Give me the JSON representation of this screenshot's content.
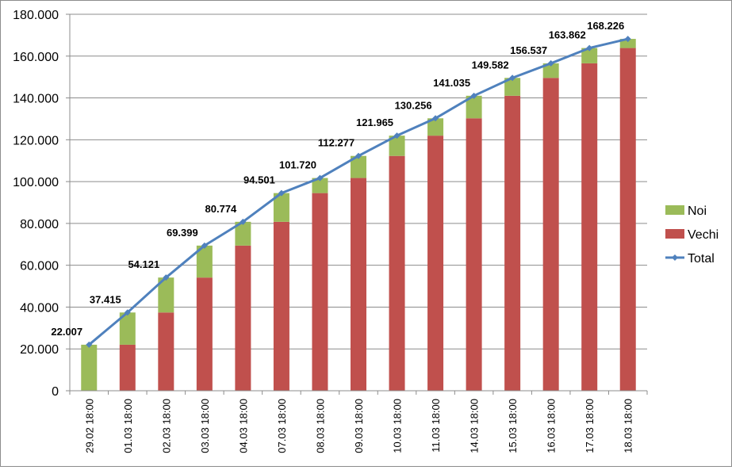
{
  "chart_data": {
    "type": "bar",
    "stacked": true,
    "categories": [
      "29.02 18:00",
      "01.03 18:00",
      "02.03 18:00",
      "03.03 18:00",
      "04.03 18:00",
      "07.03 18:00",
      "08.03 18:00",
      "09.03 18:00",
      "10.03 18:00",
      "11.03 18:00",
      "14.03 18:00",
      "15.03 18:00",
      "16.03 18:00",
      "17.03 18:00",
      "18.03 18:00"
    ],
    "series": [
      {
        "name": "Vechi",
        "type": "bar",
        "color": "#c0504d",
        "values": [
          0,
          22007,
          37415,
          54121,
          69399,
          80774,
          94501,
          101720,
          112277,
          121965,
          130256,
          141035,
          149582,
          156537,
          163862
        ]
      },
      {
        "name": "Noi",
        "type": "bar",
        "color": "#9bbb59",
        "values": [
          22007,
          15408,
          16706,
          15278,
          11375,
          13727,
          7219,
          10557,
          9688,
          8291,
          10779,
          8547,
          6955,
          7325,
          4364
        ]
      },
      {
        "name": "Total",
        "type": "line",
        "color": "#4f81bd",
        "values": [
          22007,
          37415,
          54121,
          69399,
          80774,
          94501,
          101720,
          112277,
          121965,
          130256,
          141035,
          149582,
          156537,
          163862,
          168226
        ]
      }
    ],
    "data_labels": [
      "22.007",
      "37.415",
      "54.121",
      "69.399",
      "80.774",
      "94.501",
      "101.720",
      "112.277",
      "121.965",
      "130.256",
      "141.035",
      "149.582",
      "156.537",
      "163.862",
      "168.226"
    ],
    "y_ticks": [
      "0",
      "20.000",
      "40.000",
      "60.000",
      "80.000",
      "100.000",
      "120.000",
      "140.000",
      "160.000",
      "180.000"
    ],
    "ylim": [
      0,
      180000
    ],
    "grid": true,
    "legend": {
      "position": "right",
      "items": [
        "Noi",
        "Vechi",
        "Total"
      ]
    },
    "title": "",
    "xlabel": "",
    "ylabel": ""
  }
}
